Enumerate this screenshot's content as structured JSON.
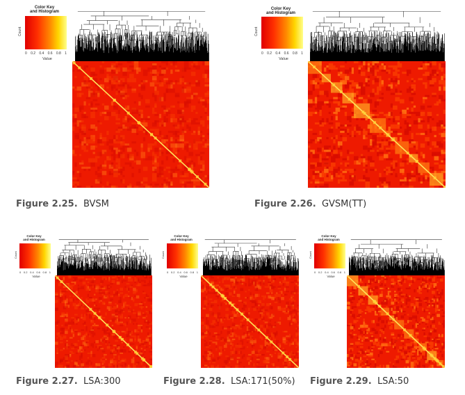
{
  "color_key": {
    "title_line1": "Color Key",
    "title_line2": "and Histogram",
    "value_label": "Value",
    "ticks": [
      "0",
      "0.2",
      "0.4",
      "0.6",
      "0.8",
      "1"
    ],
    "y_label": "Count",
    "colors": [
      "#e00000",
      "#ff3000",
      "#ff8a00",
      "#ffd600",
      "#ffff8c"
    ]
  },
  "figures": [
    {
      "number": "Figure 2.25.",
      "title": "BVSM"
    },
    {
      "number": "Figure 2.26.",
      "title": "GVSM(TT)"
    },
    {
      "number": "Figure 2.27.",
      "title": "LSA:300"
    },
    {
      "number": "Figure 2.28.",
      "title": "LSA:171(50%)"
    },
    {
      "number": "Figure 2.29.",
      "title": "LSA:50"
    }
  ]
}
